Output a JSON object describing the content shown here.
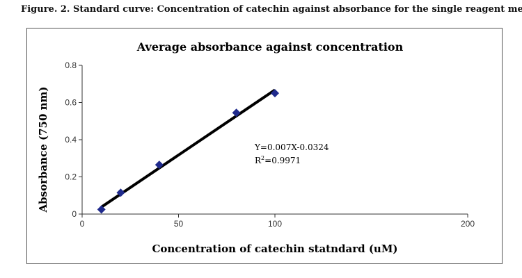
{
  "figure": {
    "caption": "Figure. 2.  Standard curve: Concentration of catechin against absorbance for the single reagent method"
  },
  "chart_data": {
    "type": "scatter",
    "title": "Average absorbance against concentration",
    "xlabel": "Concentration of catechin statndard (uM)",
    "ylabel": "Absorbance (750 nm)",
    "xlim": [
      0,
      200
    ],
    "ylim": [
      0,
      0.8
    ],
    "x_ticks": [
      {
        "value": 0,
        "label": "0"
      },
      {
        "value": 50,
        "label": "50"
      },
      {
        "value": 100,
        "label": "100"
      },
      {
        "value": 200,
        "label": "200"
      }
    ],
    "y_ticks": [
      {
        "value": 0,
        "label": "0"
      },
      {
        "value": 0.2,
        "label": "0.2"
      },
      {
        "value": 0.4,
        "label": "0.4"
      },
      {
        "value": 0.6,
        "label": "0.6"
      },
      {
        "value": 0.8,
        "label": "0.8"
      }
    ],
    "series": [
      {
        "x": [
          10,
          20,
          40,
          80,
          100
        ],
        "y": [
          0.025,
          0.115,
          0.265,
          0.545,
          0.65
        ],
        "marker": "diamond",
        "color": "#1f2a8c"
      }
    ],
    "trendline": {
      "x": [
        10,
        100
      ],
      "y": [
        0.0376,
        0.6676
      ],
      "color": "#000000"
    },
    "annotations": {
      "equation": "Y=0.007X-0.0324",
      "r2_label": "R",
      "r2_sup": "2",
      "r2_value": "=0.9971"
    },
    "grid": false,
    "legend": "none"
  }
}
